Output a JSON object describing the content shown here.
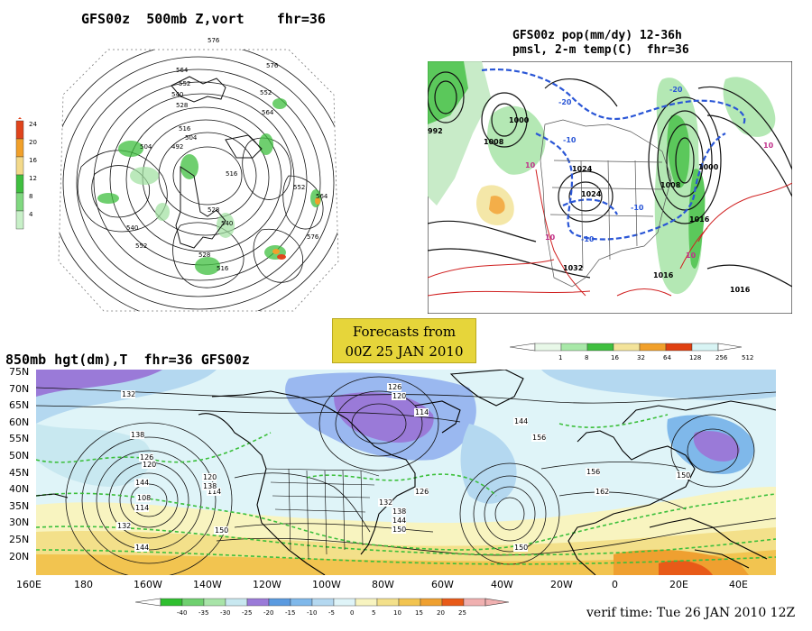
{
  "panel_500mb": {
    "title": "GFS00z  500mb Z,vort    fhr=36",
    "colorbar_labels": [
      "24",
      "20",
      "16",
      "12",
      "8",
      "4"
    ],
    "colorbar_colors": [
      "#e0441c",
      "#f1a02a",
      "#f3d98a",
      "#3fbf3f",
      "#80d880",
      "#c8f0c8"
    ],
    "contour_labels": [
      "576",
      "564",
      "552",
      "540",
      "528",
      "516",
      "504",
      "492",
      "516",
      "552",
      "564",
      "576",
      "504",
      "528",
      "540",
      "552",
      "564",
      "576",
      "540",
      "552",
      "528",
      "516"
    ]
  },
  "panel_pmsl": {
    "title_line1": "GFS00z pop(mm/dy) 12-36h",
    "title_line2": "pmsl, 2-m temp(C)  fhr=36",
    "colorbar_labels": [
      "1",
      "8",
      "16",
      "32",
      "64",
      "128",
      "256",
      "512"
    ],
    "colorbar_colors": [
      "#e8f8e8",
      "#a8e8a8",
      "#3fbf3f",
      "#f3e39a",
      "#f1a02a",
      "#e04010",
      "#d8f4f4"
    ],
    "isobar_labels": [
      "1000",
      "1008",
      "1024",
      "1024",
      "1032",
      "1016",
      "1016",
      "1016",
      "1008",
      "1000",
      "992"
    ],
    "temp_labels": [
      "-20",
      "-10",
      "-10",
      "-10",
      "-20",
      "10",
      "10",
      "10",
      "10"
    ]
  },
  "banner": {
    "line1": "Forecasts from",
    "line2": "00Z 25 JAN 2010"
  },
  "panel_850mb": {
    "title": "850mb hgt(dm),T  fhr=36 GFS00z",
    "lat_labels": [
      "75N",
      "70N",
      "65N",
      "60N",
      "55N",
      "50N",
      "45N",
      "40N",
      "35N",
      "30N",
      "25N",
      "20N"
    ],
    "lon_labels": [
      "160E",
      "180",
      "160W",
      "140W",
      "120W",
      "100W",
      "80W",
      "60W",
      "40W",
      "20W",
      "0",
      "20E",
      "40E"
    ],
    "height_labels": [
      "132",
      "138",
      "144",
      "126",
      "120",
      "114",
      "108",
      "114",
      "120",
      "132",
      "138",
      "150",
      "144",
      "126",
      "132",
      "138",
      "144",
      "150",
      "126",
      "120",
      "114",
      "144",
      "156",
      "150",
      "162",
      "156",
      "150"
    ],
    "colorbar_labels": [
      "-40",
      "-35",
      "-30",
      "-25",
      "-20",
      "-15",
      "-10",
      "-5",
      "0",
      "5",
      "10",
      "15",
      "20",
      "25"
    ],
    "colorbar_colors": [
      "#2fbf2f",
      "#6fd06f",
      "#a8e4a8",
      "#c8e8f0",
      "#9a7ad8",
      "#5a9ae0",
      "#7fb8ea",
      "#b4d8f0",
      "#dff4f8",
      "#f8f4c0",
      "#f3e08a",
      "#f2c450",
      "#efa030",
      "#e85a18",
      "#f0b0b0"
    ]
  },
  "verif": "verif time: Tue 26 JAN 2010 12Z"
}
